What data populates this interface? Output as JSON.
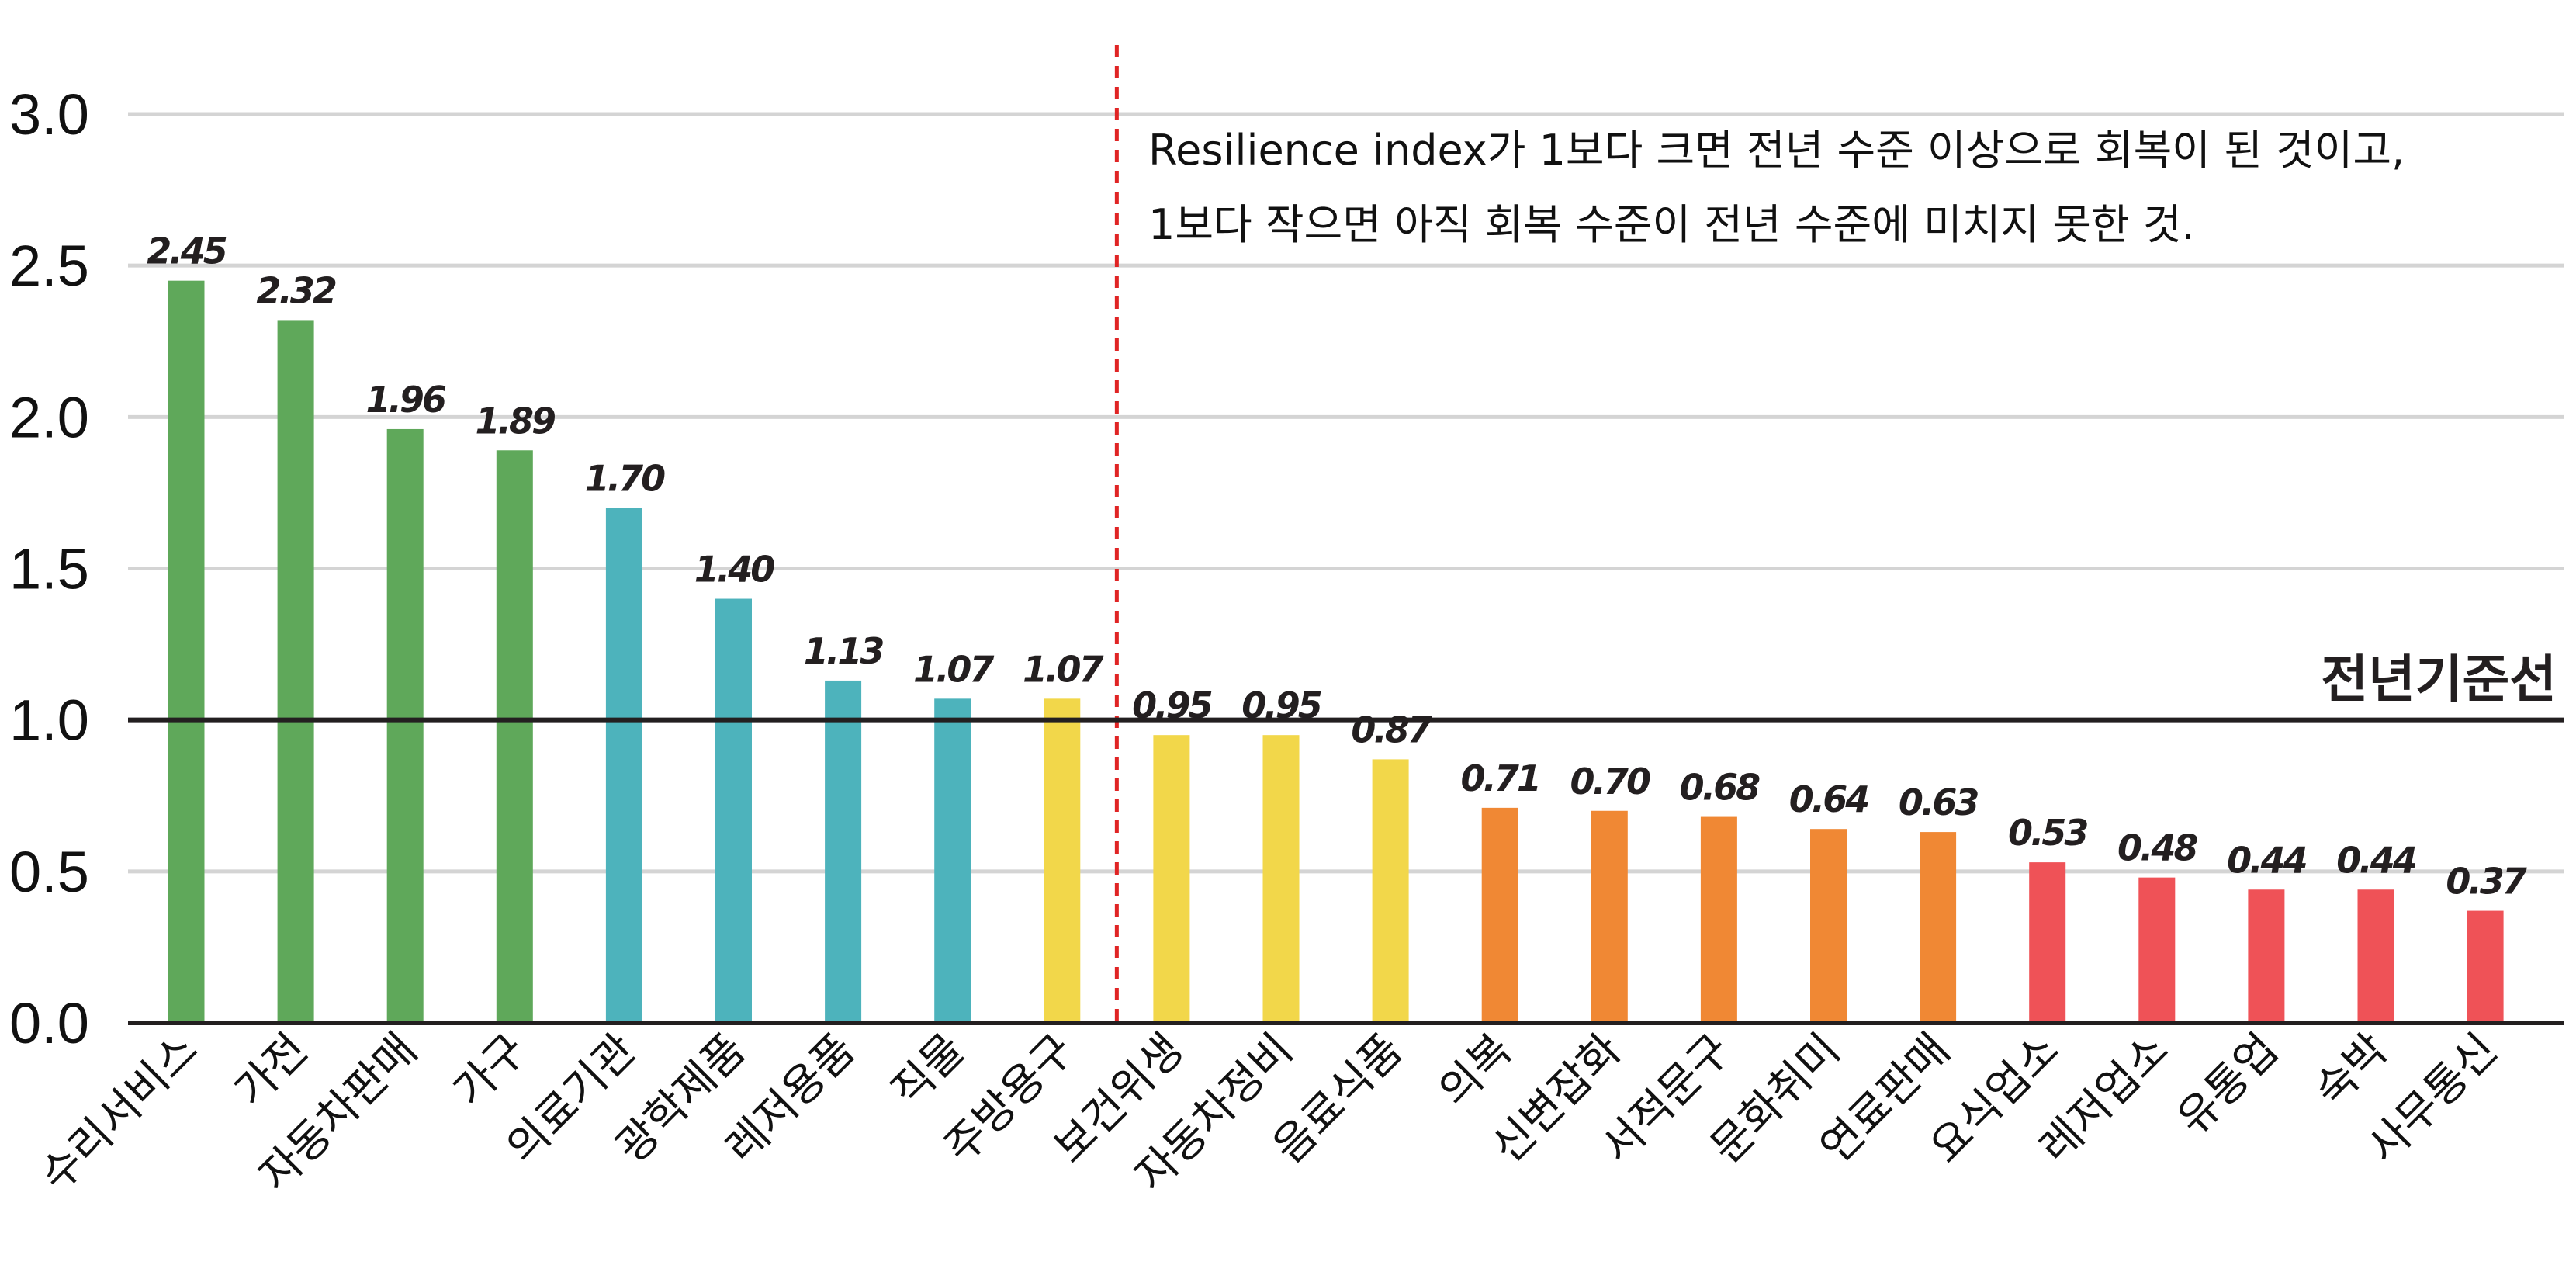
{
  "chart_data": {
    "type": "bar",
    "categories": [
      "수리서비스",
      "가전",
      "자동차판매",
      "가구",
      "의료기관",
      "광학제품",
      "레저용품",
      "직물",
      "주방용구",
      "보건위생",
      "자동차정비",
      "음료식품",
      "의복",
      "신변잡화",
      "서적문구",
      "문화취미",
      "연료판매",
      "요식업소",
      "레저업소",
      "유통업",
      "숙박",
      "사무통신"
    ],
    "values": [
      2.45,
      2.32,
      1.96,
      1.89,
      1.7,
      1.4,
      1.13,
      1.07,
      1.07,
      0.95,
      0.95,
      0.87,
      0.71,
      0.7,
      0.68,
      0.64,
      0.63,
      0.53,
      0.48,
      0.44,
      0.44,
      0.37
    ],
    "value_labels": [
      "2.45",
      "2.32",
      "1.96",
      "1.89",
      "1.70",
      "1.40",
      "1.13",
      "1.07",
      "1.07",
      "0.95",
      "0.95",
      "0.87",
      "0.71",
      "0.70",
      "0.68",
      "0.64",
      "0.63",
      "0.53",
      "0.48",
      "0.44",
      "0.44",
      "0.37"
    ],
    "colors": [
      "#5fa85a",
      "#5fa85a",
      "#5fa85a",
      "#5fa85a",
      "#4db3bc",
      "#4db3bc",
      "#4db3bc",
      "#4db3bc",
      "#f2d74a",
      "#f2d74a",
      "#f2d74a",
      "#f2d74a",
      "#f08834",
      "#f08834",
      "#f08834",
      "#f08834",
      "#f08834",
      "#ef5257",
      "#ef5257",
      "#ef5257",
      "#ef5257",
      "#ef5257"
    ],
    "ylim": [
      0,
      3.0
    ],
    "yticks": [
      "0.0",
      "0.5",
      "1.0",
      "1.5",
      "2.0",
      "2.5",
      "3.0"
    ],
    "grid": true,
    "reference_line": {
      "value": 1.0,
      "label": "전년기준선",
      "color": "#231f20"
    },
    "divider": {
      "after_category": "주방용구",
      "color": "#e02424",
      "style": "dashed"
    },
    "annotation": {
      "line1": "Resilience index가 1보다 크면 전년 수준 이상으로 회복이 된 것이고,",
      "line2": "1보다 작으면 아직 회복 수준이 전년 수준에 미치지 못한 것."
    },
    "title": "",
    "xlabel": "",
    "ylabel": ""
  }
}
